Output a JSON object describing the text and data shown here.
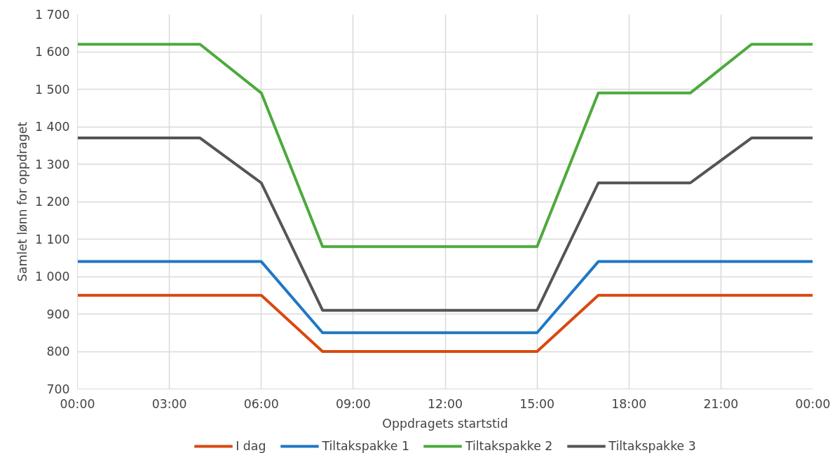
{
  "chart_data": {
    "type": "line",
    "xlabel": "Oppdragets startstid",
    "ylabel": "Samlet lønn for oppdraget",
    "series": [
      {
        "name": "I dag",
        "color": "#d9480f",
        "x": [
          0,
          6,
          8,
          15,
          17,
          24
        ],
        "values": [
          950,
          950,
          800,
          800,
          950,
          950
        ]
      },
      {
        "name": "Tiltakspakke 1",
        "color": "#1f77c4",
        "x": [
          0,
          6,
          8,
          15,
          17,
          24
        ],
        "values": [
          1040,
          1040,
          850,
          850,
          1040,
          1040
        ]
      },
      {
        "name": "Tiltakspakke 2",
        "color": "#4caa3c",
        "x": [
          0,
          4,
          6,
          8,
          15,
          17,
          20,
          22,
          24
        ],
        "values": [
          1620,
          1620,
          1490,
          1080,
          1080,
          1490,
          1490,
          1620,
          1620
        ]
      },
      {
        "name": "Tiltakspakke 3",
        "color": "#545459",
        "x": [
          0,
          4,
          6,
          8,
          15,
          17,
          20,
          22,
          24
        ],
        "values": [
          1370,
          1370,
          1250,
          910,
          910,
          1250,
          1250,
          1370,
          1370
        ]
      }
    ],
    "xlim": [
      0,
      24
    ],
    "xticks": [
      {
        "value": 0,
        "label": "00:00"
      },
      {
        "value": 3,
        "label": "03:00"
      },
      {
        "value": 6,
        "label": "06:00"
      },
      {
        "value": 9,
        "label": "09:00"
      },
      {
        "value": 12,
        "label": "12:00"
      },
      {
        "value": 15,
        "label": "15:00"
      },
      {
        "value": 18,
        "label": "18:00"
      },
      {
        "value": 21,
        "label": "21:00"
      },
      {
        "value": 24,
        "label": "00:00"
      }
    ],
    "ylim": [
      700,
      1700
    ],
    "yticks": [
      {
        "value": 700,
        "label": "700"
      },
      {
        "value": 800,
        "label": "800"
      },
      {
        "value": 900,
        "label": "900"
      },
      {
        "value": 1000,
        "label": "1 000"
      },
      {
        "value": 1100,
        "label": "1 100"
      },
      {
        "value": 1200,
        "label": "1 200"
      },
      {
        "value": 1300,
        "label": "1 300"
      },
      {
        "value": 1400,
        "label": "1 400"
      },
      {
        "value": 1500,
        "label": "1 500"
      },
      {
        "value": 1600,
        "label": "1 600"
      },
      {
        "value": 1700,
        "label": "1 700"
      }
    ],
    "grid": true,
    "legend": "bottom",
    "marker": "none",
    "line_style": "solid"
  }
}
